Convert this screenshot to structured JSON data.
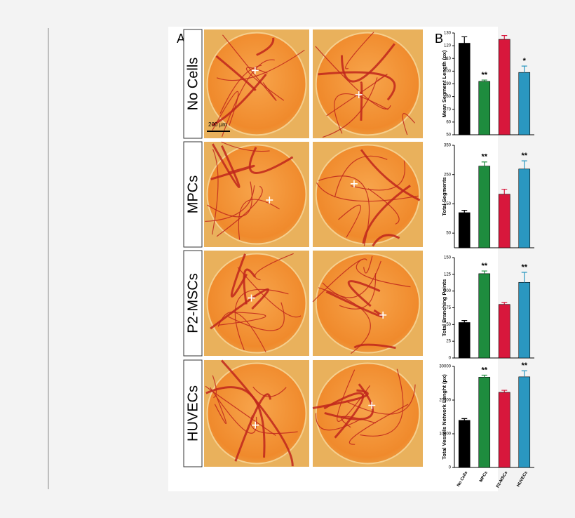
{
  "figure": {
    "panel_labels": [
      "A",
      "B"
    ],
    "rows": [
      "No Cells",
      "MPCs",
      "P2-MSCs",
      "HUVECs"
    ],
    "scale_bar": "200 μm"
  },
  "chart_data": [
    {
      "type": "bar",
      "ylabel": "Mean Segment Length (px)",
      "values": [
        122,
        92,
        125,
        99
      ],
      "errors": [
        5,
        1,
        3,
        5
      ],
      "colors": [
        "#000000",
        "#1e8c3e",
        "#d8173c",
        "#2a97c0"
      ],
      "significance": [
        null,
        "**",
        null,
        "*"
      ],
      "ylim": [
        50,
        130
      ],
      "yticks": [
        50,
        60,
        70,
        80,
        90,
        100,
        110,
        120,
        130
      ]
    },
    {
      "type": "bar",
      "ylabel": "Total Segments",
      "values": [
        120,
        279,
        183,
        269
      ],
      "errors": [
        8,
        14,
        17,
        28
      ],
      "colors": [
        "#000000",
        "#1e8c3e",
        "#d8173c",
        "#2a97c0"
      ],
      "significance": [
        null,
        "**",
        null,
        "**"
      ],
      "ylim": [
        0,
        350
      ],
      "yticks": [
        50,
        150,
        250,
        350
      ]
    },
    {
      "type": "bar",
      "ylabel": "Total Branching Points",
      "values": [
        53,
        126,
        80,
        113
      ],
      "errors": [
        3,
        4,
        3,
        15
      ],
      "colors": [
        "#000000",
        "#1e8c3e",
        "#d8173c",
        "#2a97c0"
      ],
      "significance": [
        null,
        "**",
        null,
        "**"
      ],
      "ylim": [
        0,
        150
      ],
      "yticks": [
        0,
        25,
        50,
        75,
        100,
        125,
        150
      ]
    },
    {
      "type": "bar",
      "ylabel": "Total Vessels Network Lenght (px)",
      "categories": [
        "No Cells",
        "MPCs",
        "P2-MSCs",
        "HUVECs"
      ],
      "values": [
        14000,
        26800,
        22300,
        26900
      ],
      "errors": [
        500,
        600,
        600,
        1800
      ],
      "colors": [
        "#000000",
        "#1e8c3e",
        "#d8173c",
        "#2a97c0"
      ],
      "significance": [
        null,
        "**",
        null,
        "**"
      ],
      "ylim": [
        0,
        30000
      ],
      "yticks": [
        0,
        10000,
        20000,
        30000
      ]
    }
  ]
}
